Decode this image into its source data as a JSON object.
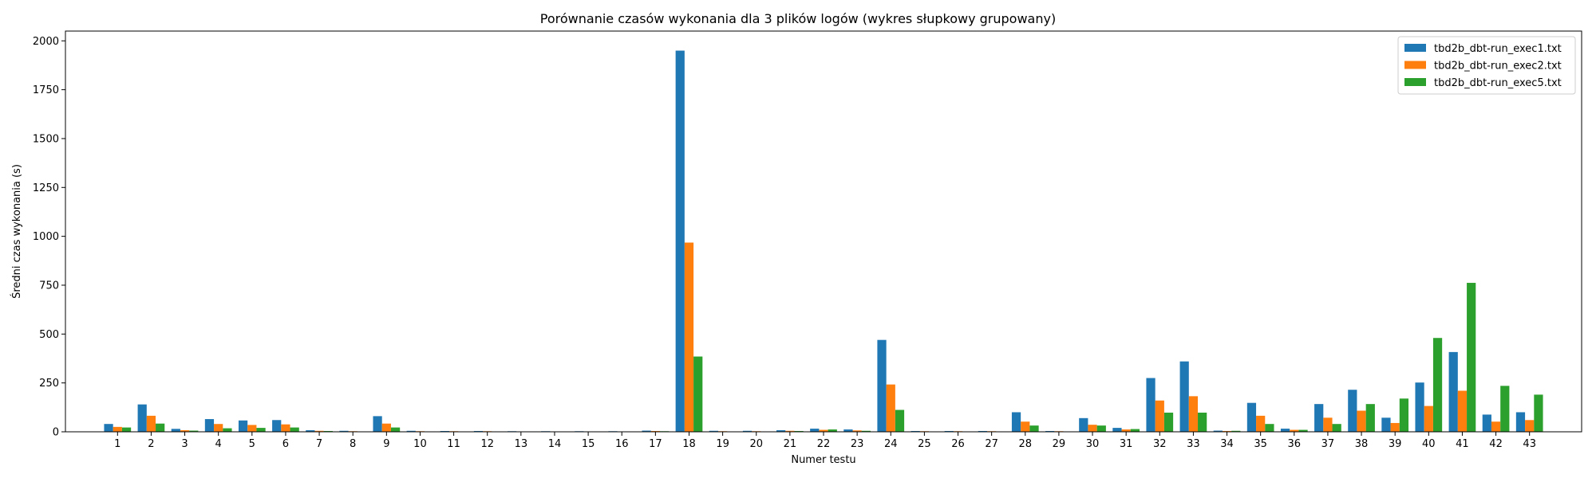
{
  "chart_data": {
    "type": "bar",
    "title": "Porównanie czasów wykonania dla 3 plików logów (wykres słupkowy grupowany)",
    "xlabel": "Numer testu",
    "ylabel": "Średni czas wykonania (s)",
    "ylim": [
      0,
      2050
    ],
    "yticks": [
      0,
      250,
      500,
      750,
      1000,
      1250,
      1500,
      1750,
      2000
    ],
    "grid": false,
    "legend_position": "top-right",
    "categories": [
      "1",
      "2",
      "3",
      "4",
      "5",
      "6",
      "7",
      "8",
      "9",
      "10",
      "11",
      "12",
      "13",
      "14",
      "15",
      "16",
      "17",
      "18",
      "19",
      "20",
      "21",
      "22",
      "23",
      "24",
      "25",
      "26",
      "27",
      "28",
      "29",
      "30",
      "31",
      "32",
      "33",
      "34",
      "35",
      "36",
      "37",
      "38",
      "39",
      "40",
      "41",
      "42",
      "43"
    ],
    "series": [
      {
        "name": "tbd2b_dbt-run_exec1.txt",
        "color": "#1f77b4",
        "values": [
          40,
          140,
          15,
          65,
          58,
          60,
          8,
          5,
          80,
          5,
          4,
          4,
          3,
          3,
          3,
          3,
          6,
          1950,
          5,
          5,
          8,
          16,
          12,
          470,
          4,
          4,
          4,
          100,
          4,
          70,
          20,
          275,
          360,
          6,
          148,
          16,
          142,
          215,
          72,
          252,
          408,
          88,
          100
        ]
      },
      {
        "name": "tbd2b_dbt-run_exec2.txt",
        "color": "#ff7f0e",
        "values": [
          25,
          82,
          8,
          40,
          35,
          38,
          5,
          3,
          42,
          3,
          3,
          3,
          2,
          2,
          2,
          2,
          4,
          968,
          3,
          3,
          5,
          10,
          7,
          242,
          3,
          3,
          3,
          52,
          3,
          36,
          12,
          160,
          182,
          4,
          82,
          10,
          72,
          108,
          45,
          132,
          210,
          52,
          60
        ]
      },
      {
        "name": "tbd2b_dbt-run_exec5.txt",
        "color": "#2ca02c",
        "values": [
          22,
          42,
          6,
          18,
          20,
          22,
          4,
          2,
          22,
          2,
          2,
          2,
          1,
          1,
          1,
          1,
          3,
          385,
          2,
          2,
          4,
          12,
          5,
          112,
          2,
          2,
          2,
          32,
          2,
          32,
          14,
          98,
          98,
          5,
          40,
          10,
          40,
          142,
          170,
          480,
          762,
          235,
          190
        ]
      }
    ]
  }
}
